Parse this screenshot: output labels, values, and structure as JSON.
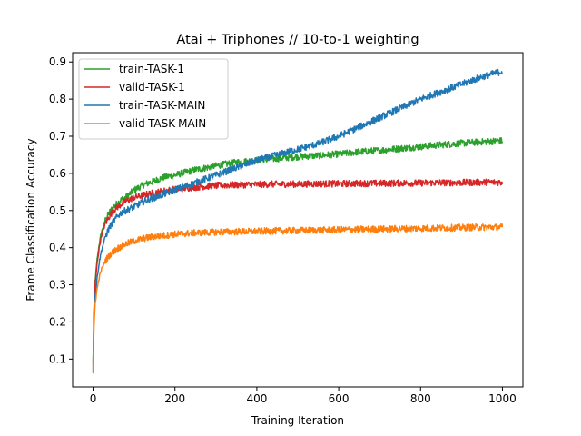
{
  "chart_data": {
    "type": "line",
    "title": "Atai + Triphones // 10-to-1 weighting",
    "xlabel": "Training Iteration",
    "ylabel": "Frame Classification Accuracy",
    "xlim": [
      -50,
      1050
    ],
    "ylim": [
      0.025,
      0.925
    ],
    "xticks": [
      0,
      200,
      400,
      600,
      800,
      1000
    ],
    "yticks": [
      0.1,
      0.2,
      0.3,
      0.4,
      0.5,
      0.6,
      0.7,
      0.8,
      0.9
    ],
    "xtick_labels": [
      "0",
      "200",
      "400",
      "600",
      "800",
      "1000"
    ],
    "ytick_labels": [
      "0.1",
      "0.2",
      "0.3",
      "0.4",
      "0.5",
      "0.6",
      "0.7",
      "0.8",
      "0.9"
    ],
    "grid": false,
    "legend_position": "upper-left",
    "series": [
      {
        "name": "train-TASK-1",
        "color": "#2ca02c",
        "x": [
          0,
          2,
          5,
          10,
          15,
          20,
          30,
          40,
          50,
          60,
          70,
          80,
          90,
          100,
          125,
          150,
          175,
          200,
          250,
          300,
          350,
          400,
          450,
          500,
          550,
          600,
          650,
          700,
          750,
          800,
          850,
          900,
          950,
          1000
        ],
        "values": [
          0.09,
          0.23,
          0.31,
          0.37,
          0.41,
          0.44,
          0.475,
          0.495,
          0.51,
          0.52,
          0.53,
          0.535,
          0.545,
          0.555,
          0.57,
          0.58,
          0.59,
          0.595,
          0.61,
          0.62,
          0.63,
          0.635,
          0.64,
          0.645,
          0.648,
          0.652,
          0.658,
          0.662,
          0.667,
          0.672,
          0.677,
          0.681,
          0.685,
          0.688
        ]
      },
      {
        "name": "valid-TASK-1",
        "color": "#d62728",
        "x": [
          0,
          2,
          5,
          10,
          15,
          20,
          30,
          40,
          50,
          60,
          70,
          80,
          90,
          100,
          125,
          150,
          175,
          200,
          250,
          300,
          350,
          400,
          450,
          500,
          550,
          600,
          650,
          700,
          750,
          800,
          850,
          900,
          950,
          1000
        ],
        "values": [
          0.08,
          0.22,
          0.3,
          0.36,
          0.4,
          0.43,
          0.465,
          0.485,
          0.5,
          0.51,
          0.518,
          0.525,
          0.53,
          0.535,
          0.542,
          0.548,
          0.553,
          0.557,
          0.563,
          0.567,
          0.569,
          0.57,
          0.571,
          0.571,
          0.572,
          0.572,
          0.573,
          0.573,
          0.574,
          0.574,
          0.575,
          0.575,
          0.576,
          0.576
        ]
      },
      {
        "name": "train-TASK-MAIN",
        "color": "#1f77b4",
        "x": [
          0,
          2,
          5,
          10,
          15,
          20,
          30,
          40,
          50,
          60,
          70,
          80,
          90,
          100,
          125,
          150,
          175,
          200,
          250,
          300,
          350,
          400,
          450,
          500,
          550,
          600,
          650,
          700,
          750,
          800,
          850,
          900,
          950,
          1000
        ],
        "values": [
          0.07,
          0.2,
          0.27,
          0.32,
          0.36,
          0.39,
          0.43,
          0.455,
          0.47,
          0.485,
          0.495,
          0.5,
          0.505,
          0.51,
          0.525,
          0.535,
          0.545,
          0.555,
          0.575,
          0.595,
          0.615,
          0.635,
          0.65,
          0.665,
          0.68,
          0.7,
          0.725,
          0.75,
          0.775,
          0.8,
          0.82,
          0.84,
          0.86,
          0.875
        ]
      },
      {
        "name": "valid-TASK-MAIN",
        "color": "#ff7f0e",
        "x": [
          0,
          2,
          5,
          10,
          15,
          20,
          30,
          40,
          50,
          60,
          70,
          80,
          90,
          100,
          125,
          150,
          175,
          200,
          250,
          300,
          350,
          400,
          450,
          500,
          550,
          600,
          650,
          700,
          750,
          800,
          850,
          900,
          950,
          1000
        ],
        "values": [
          0.06,
          0.18,
          0.25,
          0.29,
          0.32,
          0.34,
          0.365,
          0.38,
          0.39,
          0.398,
          0.404,
          0.41,
          0.414,
          0.418,
          0.425,
          0.43,
          0.433,
          0.436,
          0.44,
          0.442,
          0.443,
          0.444,
          0.445,
          0.446,
          0.447,
          0.448,
          0.449,
          0.45,
          0.451,
          0.452,
          0.453,
          0.454,
          0.455,
          0.455
        ]
      }
    ]
  }
}
